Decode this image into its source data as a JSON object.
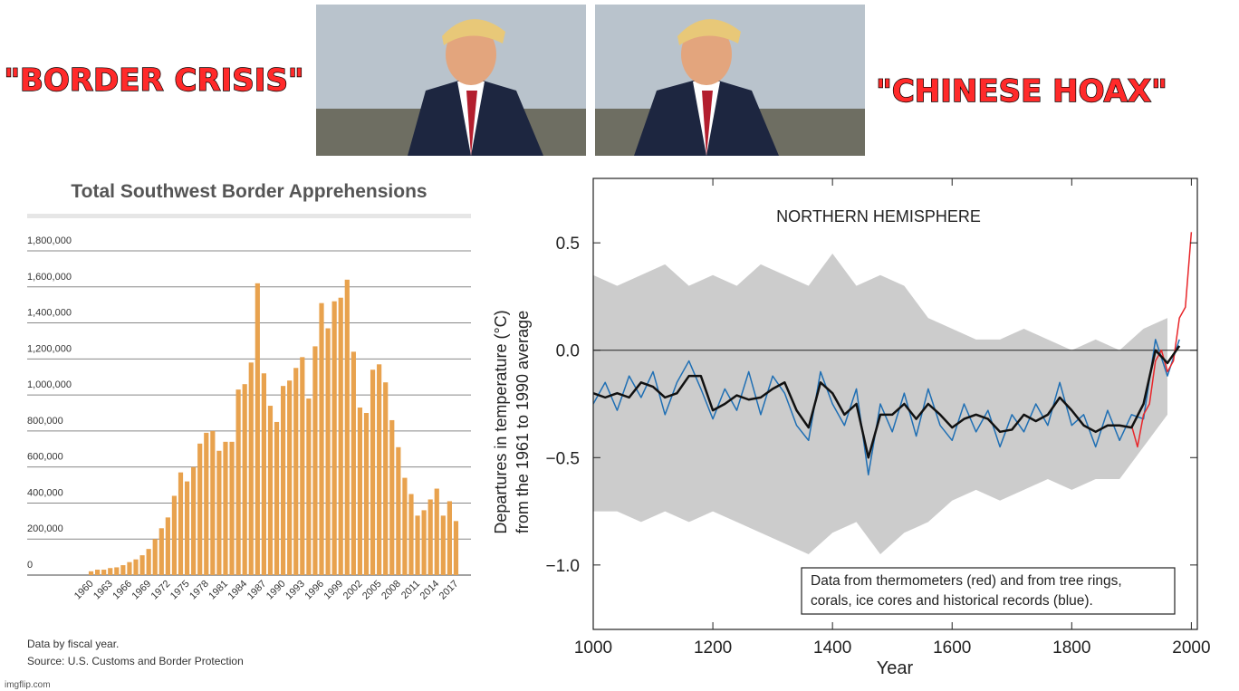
{
  "captions": [
    "\"BORDER CRISIS\"",
    "\"CHINESE HOAX\""
  ],
  "watermark": "imgflip.com",
  "chart_data": [
    {
      "type": "bar",
      "title": "Total Southwest Border Apprehensions",
      "color": "#e8a24e",
      "grid": true,
      "notes": [
        "Data by fiscal year.",
        "Source: U.S. Customs and Border Protection"
      ],
      "categories": [
        "1960",
        null,
        null,
        "1963",
        null,
        null,
        "1966",
        null,
        null,
        "1969",
        null,
        null,
        "1972",
        null,
        null,
        "1975",
        null,
        null,
        "1978",
        null,
        null,
        "1981",
        null,
        null,
        "1984",
        null,
        null,
        "1987",
        null,
        null,
        "1990",
        null,
        null,
        "1993",
        null,
        null,
        "1996",
        null,
        null,
        "1999",
        null,
        null,
        "2002",
        null,
        null,
        "2005",
        null,
        null,
        "2008",
        null,
        null,
        "2011",
        null,
        null,
        "2014",
        null,
        null,
        "2017"
      ],
      "values": [
        21000,
        30000,
        30000,
        39000,
        43000,
        55000,
        72000,
        87000,
        110000,
        145000,
        200000,
        260000,
        320000,
        440000,
        570000,
        520000,
        600000,
        730000,
        790000,
        800000,
        690000,
        740000,
        740000,
        1030000,
        1060000,
        1180000,
        1620000,
        1120000,
        940000,
        850000,
        1050000,
        1080000,
        1150000,
        1210000,
        980000,
        1270000,
        1510000,
        1370000,
        1520000,
        1540000,
        1640000,
        1240000,
        930000,
        900000,
        1140000,
        1170000,
        1070000,
        860000,
        710000,
        540000,
        450000,
        330000,
        360000,
        420000,
        480000,
        330000,
        410000,
        300000
      ],
      "ylim": [
        0,
        1800000
      ],
      "yticks": [
        0,
        {
          "value": 200000,
          "label": "200,000"
        },
        {
          "value": 400000,
          "label": "400,000"
        },
        {
          "value": 600000,
          "label": "600,000"
        },
        {
          "value": 800000,
          "label": "800,000"
        },
        {
          "value": 1000000,
          "label": "1,000,000"
        },
        {
          "value": 1200000,
          "label": "1,200,000"
        },
        {
          "value": 1400000,
          "label": "1,400,000"
        },
        {
          "value": 1600000,
          "label": "1,600,000"
        },
        {
          "value": 1800000,
          "label": "1,800,000"
        }
      ]
    },
    {
      "type": "line",
      "title": "NORTHERN HEMISPHERE",
      "xlabel": "Year",
      "ylabel": [
        "Departures in temperature (°C)",
        "from the 1961 to 1990 average"
      ],
      "annotation": [
        "Data from thermometers (red) and from tree rings,",
        "corals, ice cores and historical records (blue)."
      ],
      "xlim": [
        1000,
        2010
      ],
      "xticks": [
        1000,
        1200,
        1400,
        1600,
        1800,
        2000
      ],
      "ylim": [
        -1.3,
        0.8
      ],
      "yticks": [
        {
          "value": -1.0,
          "label": "−1.0"
        },
        {
          "value": -0.5,
          "label": "−0.5"
        },
        {
          "value": 0.0,
          "label": "0.0"
        },
        0.5
      ],
      "zero_line": 0,
      "band": {
        "color": "#cccccc",
        "x": [
          1000,
          1040,
          1080,
          1120,
          1160,
          1200,
          1240,
          1280,
          1320,
          1360,
          1400,
          1440,
          1480,
          1520,
          1560,
          1600,
          1640,
          1680,
          1720,
          1760,
          1800,
          1840,
          1880,
          1920,
          1960
        ],
        "upper": [
          0.35,
          0.3,
          0.35,
          0.4,
          0.3,
          0.35,
          0.3,
          0.4,
          0.35,
          0.3,
          0.45,
          0.3,
          0.35,
          0.3,
          0.15,
          0.1,
          0.05,
          0.05,
          0.1,
          0.05,
          0.0,
          0.05,
          0.0,
          0.1,
          0.15
        ],
        "lower": [
          -0.75,
          -0.75,
          -0.8,
          -0.75,
          -0.8,
          -0.75,
          -0.8,
          -0.85,
          -0.9,
          -0.95,
          -0.85,
          -0.8,
          -0.95,
          -0.85,
          -0.8,
          -0.7,
          -0.65,
          -0.7,
          -0.65,
          -0.6,
          -0.65,
          -0.6,
          -0.6,
          -0.45,
          -0.3
        ]
      },
      "series": [
        {
          "color": "#1f6fb4",
          "width": 1.5,
          "x": [
            1000,
            1020,
            1040,
            1060,
            1080,
            1100,
            1120,
            1140,
            1160,
            1180,
            1200,
            1220,
            1240,
            1260,
            1280,
            1300,
            1320,
            1340,
            1360,
            1380,
            1400,
            1420,
            1440,
            1460,
            1480,
            1500,
            1520,
            1540,
            1560,
            1580,
            1600,
            1620,
            1640,
            1660,
            1680,
            1700,
            1720,
            1740,
            1760,
            1780,
            1800,
            1820,
            1840,
            1860,
            1880,
            1900,
            1920,
            1940,
            1960,
            1980
          ],
          "values": [
            -0.25,
            -0.15,
            -0.28,
            -0.12,
            -0.22,
            -0.1,
            -0.3,
            -0.15,
            -0.05,
            -0.18,
            -0.32,
            -0.18,
            -0.28,
            -0.1,
            -0.3,
            -0.12,
            -0.2,
            -0.35,
            -0.42,
            -0.1,
            -0.25,
            -0.35,
            -0.18,
            -0.58,
            -0.25,
            -0.38,
            -0.2,
            -0.4,
            -0.18,
            -0.35,
            -0.42,
            -0.25,
            -0.38,
            -0.28,
            -0.45,
            -0.3,
            -0.38,
            -0.25,
            -0.35,
            -0.15,
            -0.35,
            -0.3,
            -0.45,
            -0.28,
            -0.42,
            -0.3,
            -0.32,
            0.05,
            -0.12,
            0.05
          ]
        },
        {
          "color": "#e8262a",
          "width": 1.5,
          "x": [
            1900,
            1910,
            1920,
            1930,
            1940,
            1950,
            1960,
            1970,
            1980,
            1990,
            2000
          ],
          "values": [
            -0.35,
            -0.45,
            -0.3,
            -0.25,
            -0.05,
            0.0,
            -0.1,
            -0.05,
            0.15,
            0.2,
            0.55
          ]
        },
        {
          "color": "#111111",
          "width": 2.5,
          "x": [
            1000,
            1020,
            1040,
            1060,
            1080,
            1100,
            1120,
            1140,
            1160,
            1180,
            1200,
            1220,
            1240,
            1260,
            1280,
            1300,
            1320,
            1340,
            1360,
            1380,
            1400,
            1420,
            1440,
            1460,
            1480,
            1500,
            1520,
            1540,
            1560,
            1580,
            1600,
            1620,
            1640,
            1660,
            1680,
            1700,
            1720,
            1740,
            1760,
            1780,
            1800,
            1820,
            1840,
            1860,
            1880,
            1900,
            1920,
            1940,
            1960,
            1980
          ],
          "values": [
            -0.2,
            -0.22,
            -0.2,
            -0.22,
            -0.15,
            -0.17,
            -0.22,
            -0.2,
            -0.12,
            -0.12,
            -0.28,
            -0.25,
            -0.21,
            -0.23,
            -0.22,
            -0.18,
            -0.15,
            -0.28,
            -0.36,
            -0.15,
            -0.2,
            -0.3,
            -0.25,
            -0.5,
            -0.3,
            -0.3,
            -0.25,
            -0.32,
            -0.25,
            -0.3,
            -0.36,
            -0.32,
            -0.3,
            -0.32,
            -0.38,
            -0.37,
            -0.3,
            -0.33,
            -0.3,
            -0.22,
            -0.28,
            -0.35,
            -0.38,
            -0.35,
            -0.35,
            -0.36,
            -0.25,
            0.0,
            -0.06,
            0.02
          ]
        }
      ]
    }
  ]
}
